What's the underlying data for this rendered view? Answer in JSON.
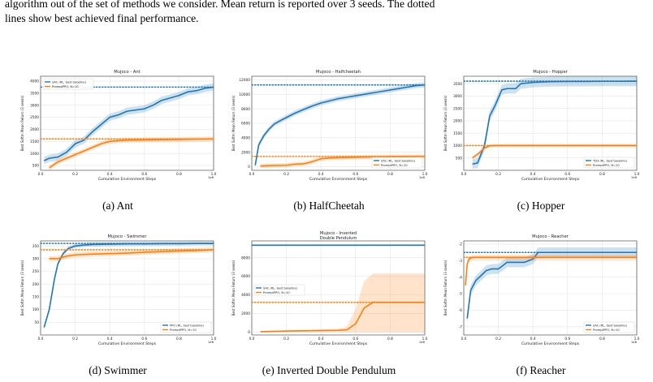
{
  "caption": {
    "line1": "algorithm out of the set of methods we consider. Mean return is reported over 3 seeds. The dotted",
    "line2": "lines show best achieved final performance."
  },
  "colors": {
    "baseline": "#1f77b4",
    "prompt": "#ff7f0e",
    "grid": "#e6e6e6"
  },
  "chart_data": [
    {
      "type": "line",
      "subcaption": "(a) Ant",
      "title": "Mujoco - Ant",
      "xlabel": "Cumulative Environment Steps",
      "ylabel": "Best Softm Mean Return (3 seeds)",
      "xlim": [
        0,
        1.0
      ],
      "ylim": [
        300,
        4200
      ],
      "x_ticks": [
        0,
        0.2,
        0.4,
        0.6,
        0.8,
        1.0
      ],
      "x_tick_labels": [
        "0.0",
        "0.2",
        "0.4",
        "0.6",
        "0.8",
        "1.0"
      ],
      "x_offset": "1e6",
      "y_ticks": [
        500,
        1000,
        1500,
        2000,
        2500,
        3000,
        3500,
        4000
      ],
      "legend_loc": "upper-left",
      "series": [
        {
          "name": "SAC (RL, best baseline)",
          "color_key": "baseline",
          "band": 150,
          "x": [
            0.02,
            0.05,
            0.1,
            0.15,
            0.2,
            0.25,
            0.3,
            0.35,
            0.4,
            0.45,
            0.5,
            0.55,
            0.6,
            0.65,
            0.7,
            0.75,
            0.8,
            0.85,
            0.9,
            0.95,
            1.0
          ],
          "y": [
            700,
            800,
            850,
            1050,
            1400,
            1550,
            1900,
            2200,
            2500,
            2600,
            2750,
            2800,
            2850,
            3000,
            3200,
            3300,
            3400,
            3550,
            3600,
            3700,
            3750
          ],
          "best": 3750
        },
        {
          "name": "PromptPPO, N=10",
          "color_key": "prompt",
          "band": 100,
          "x": [
            0.05,
            0.1,
            0.15,
            0.2,
            0.25,
            0.3,
            0.35,
            0.4,
            0.5,
            0.6,
            0.7,
            0.8,
            0.9,
            1.0
          ],
          "y": [
            400,
            650,
            800,
            950,
            1100,
            1250,
            1400,
            1500,
            1550,
            1560,
            1570,
            1580,
            1590,
            1600
          ],
          "best": 1600
        }
      ]
    },
    {
      "type": "line",
      "subcaption": "(b) HalfCheetah",
      "title": "Mujoco - Halfcheetah",
      "xlabel": "Cumulative Environment Steps",
      "ylabel": "Best Softm Mean Return (3 seeds)",
      "xlim": [
        0,
        1.0
      ],
      "ylim": [
        -500,
        12500
      ],
      "x_ticks": [
        0,
        0.2,
        0.4,
        0.6,
        0.8,
        1.0
      ],
      "x_tick_labels": [
        "0.0",
        "0.2",
        "0.4",
        "0.6",
        "0.8",
        "1.0"
      ],
      "x_offset": "1e6",
      "y_ticks": [
        0,
        2000,
        4000,
        6000,
        8000,
        10000,
        12000
      ],
      "legend_loc": "lower-right",
      "series": [
        {
          "name": "SAC (RL, best baseline)",
          "color_key": "baseline",
          "band": 350,
          "x": [
            0.02,
            0.04,
            0.07,
            0.1,
            0.13,
            0.16,
            0.2,
            0.25,
            0.3,
            0.35,
            0.4,
            0.45,
            0.5,
            0.55,
            0.6,
            0.65,
            0.7,
            0.75,
            0.8,
            0.85,
            0.9,
            0.95,
            1.0
          ],
          "y": [
            200,
            3000,
            4300,
            5200,
            5900,
            6300,
            6800,
            7400,
            7900,
            8400,
            8800,
            9100,
            9400,
            9600,
            9800,
            10000,
            10200,
            10400,
            10600,
            10800,
            11000,
            11200,
            11300
          ],
          "best": 11300
        },
        {
          "name": "PromptPPO, N=10",
          "color_key": "prompt",
          "band": 300,
          "x": [
            0.05,
            0.1,
            0.2,
            0.25,
            0.3,
            0.35,
            0.4,
            0.45,
            0.5,
            0.6,
            0.7,
            0.8,
            0.9,
            1.0
          ],
          "y": [
            100,
            150,
            200,
            350,
            400,
            700,
            1100,
            1200,
            1250,
            1300,
            1350,
            1380,
            1400,
            1420
          ],
          "best": 1420
        }
      ]
    },
    {
      "type": "line",
      "subcaption": "(c) Hopper",
      "title": "Mujoco - Hopper",
      "xlabel": "Cumulative Environment Steps",
      "ylabel": "Best Softm Mean Return (3 seeds)",
      "xlim": [
        0,
        1.0
      ],
      "ylim": [
        0,
        3800
      ],
      "x_ticks": [
        0,
        0.2,
        0.4,
        0.6,
        0.8,
        1.0
      ],
      "x_tick_labels": [
        "0.0",
        "0.2",
        "0.4",
        "0.6",
        "0.8",
        "1.0"
      ],
      "x_offset": "1e6",
      "y_ticks": [
        500,
        1000,
        1500,
        2000,
        2500,
        3000,
        3500
      ],
      "legend_loc": "lower-right",
      "series": [
        {
          "name": "TD3 (RL, best baseline)",
          "color_key": "baseline",
          "band": 200,
          "x": [
            0.05,
            0.08,
            0.12,
            0.15,
            0.18,
            0.22,
            0.25,
            0.3,
            0.33,
            0.4,
            0.5,
            0.6,
            0.7,
            0.8,
            0.9,
            1.0
          ],
          "y": [
            250,
            300,
            1000,
            2200,
            2600,
            3250,
            3300,
            3300,
            3500,
            3550,
            3580,
            3590,
            3590,
            3595,
            3595,
            3600
          ],
          "best": 3600
        },
        {
          "name": "PromptPPO, N=10",
          "color_key": "prompt",
          "band": 60,
          "x": [
            0.05,
            0.08,
            0.12,
            0.15,
            0.2,
            0.3,
            0.5,
            0.7,
            0.9,
            1.0
          ],
          "y": [
            500,
            650,
            900,
            990,
            1000,
            1000,
            1000,
            1000,
            1000,
            1000
          ],
          "best": 1000
        }
      ]
    },
    {
      "type": "line",
      "subcaption": "(d) Swimmer",
      "title": "Mujoco - Swimmer",
      "xlabel": "Cumulative Environment Steps",
      "ylabel": "Best Softm Mean Return (3 seeds)",
      "xlim": [
        0,
        1.0
      ],
      "ylim": [
        0,
        370
      ],
      "x_ticks": [
        0,
        0.2,
        0.4,
        0.6,
        0.8,
        1.0
      ],
      "x_tick_labels": [
        "0.0",
        "0.2",
        "0.4",
        "0.6",
        "0.8",
        "1.0"
      ],
      "x_offset": "1e6",
      "y_ticks": [
        50,
        100,
        150,
        200,
        250,
        300,
        350
      ],
      "legend_loc": "lower-right",
      "series": [
        {
          "name": "PPO (RL, best baseline)",
          "color_key": "baseline",
          "band": 8,
          "x": [
            0.02,
            0.05,
            0.08,
            0.1,
            0.13,
            0.16,
            0.2,
            0.25,
            0.3,
            0.4,
            0.5,
            0.6,
            0.7,
            0.8,
            0.9,
            1.0
          ],
          "y": [
            30,
            100,
            220,
            280,
            320,
            340,
            350,
            354,
            356,
            357,
            358,
            358,
            359,
            359,
            360,
            360
          ],
          "best": 360
        },
        {
          "name": "PromptPPO, N=10",
          "color_key": "prompt",
          "band": 10,
          "x": [
            0.05,
            0.1,
            0.15,
            0.2,
            0.3,
            0.4,
            0.5,
            0.6,
            0.7,
            0.8,
            0.9,
            1.0
          ],
          "y": [
            300,
            300,
            310,
            315,
            318,
            320,
            322,
            325,
            328,
            330,
            332,
            335
          ],
          "best": 335
        }
      ]
    },
    {
      "type": "line",
      "subcaption": "(e) Inverted Double Pendulum",
      "title": "Mujoco - Inverted",
      "title2": "Double Pendulum",
      "xlabel": "Cumulative Environment Steps",
      "ylabel": "Best Softm Mean Return (3 seeds)",
      "xlim": [
        0,
        1.0
      ],
      "ylim": [
        -300,
        9800
      ],
      "x_ticks": [
        0,
        0.2,
        0.4,
        0.6,
        0.8,
        1.0
      ],
      "x_tick_labels": [
        "0.0",
        "0.2",
        "0.4",
        "0.6",
        "0.8",
        "1.0"
      ],
      "x_offset": "1e6",
      "y_ticks": [
        0,
        2000,
        4000,
        6000,
        8000
      ],
      "legend_loc": "center-left",
      "series": [
        {
          "name": "SAC (RL, best baseline)",
          "color_key": "baseline",
          "band": 0,
          "x": [
            0.0,
            0.2,
            0.4,
            0.6,
            0.8,
            1.0
          ],
          "y": [
            9340,
            9340,
            9340,
            9340,
            9340,
            9340
          ],
          "best": 9340
        },
        {
          "name": "PromptPPO, N=10",
          "color_key": "prompt",
          "x": [
            0.05,
            0.1,
            0.2,
            0.3,
            0.4,
            0.5,
            0.55,
            0.6,
            0.65,
            0.7,
            0.8,
            0.9,
            1.0
          ],
          "y": [
            50,
            80,
            120,
            150,
            170,
            200,
            250,
            900,
            2600,
            3200,
            3200,
            3200,
            3200
          ],
          "band_lo": [
            0,
            0,
            0,
            0,
            0,
            0,
            0,
            0,
            0,
            0,
            0,
            0,
            0
          ],
          "band_hi": [
            100,
            150,
            200,
            250,
            300,
            350,
            600,
            2500,
            5500,
            6300,
            6300,
            6300,
            6300
          ],
          "best": 3200
        }
      ]
    },
    {
      "type": "line",
      "subcaption": "(f) Reacher",
      "title": "Mujoco - Reacher",
      "xlabel": "Cumulative Environment Steps",
      "ylabel": "Best Softm Mean Return (3 seeds)",
      "xlim": [
        0,
        1.0
      ],
      "ylim": [
        -7.5,
        -1.8
      ],
      "x_ticks": [
        0,
        0.2,
        0.4,
        0.6,
        0.8,
        1.0
      ],
      "x_tick_labels": [
        "0.0",
        "0.2",
        "0.4",
        "0.6",
        "0.8",
        "1.0"
      ],
      "x_offset": "1e6",
      "y_ticks": [
        -7,
        -6,
        -5,
        -4,
        -3,
        -2
      ],
      "legend_loc": "lower-right",
      "series": [
        {
          "name": "SAC (RL, best baseline)",
          "color_key": "baseline",
          "band": 0.3,
          "x": [
            0.02,
            0.04,
            0.07,
            0.1,
            0.13,
            0.16,
            0.2,
            0.25,
            0.3,
            0.35,
            0.4,
            0.43,
            0.5,
            0.6,
            0.7,
            0.8,
            0.9,
            1.0
          ],
          "y": [
            -6.5,
            -4.8,
            -4.2,
            -3.9,
            -3.6,
            -3.5,
            -3.5,
            -3.1,
            -3.1,
            -3.1,
            -2.9,
            -2.5,
            -2.5,
            -2.5,
            -2.5,
            -2.5,
            -2.5,
            -2.5
          ],
          "best": -2.5
        },
        {
          "name": "PromptPPO, N=10",
          "color_key": "prompt",
          "band": 0.15,
          "x": [
            0.01,
            0.02,
            0.03,
            0.05,
            0.1,
            0.2,
            0.4,
            0.6,
            0.8,
            1.0
          ],
          "y": [
            -4.5,
            -3.2,
            -2.9,
            -2.8,
            -2.8,
            -2.8,
            -2.8,
            -2.8,
            -2.8,
            -2.8
          ],
          "best": -2.8
        }
      ]
    }
  ]
}
